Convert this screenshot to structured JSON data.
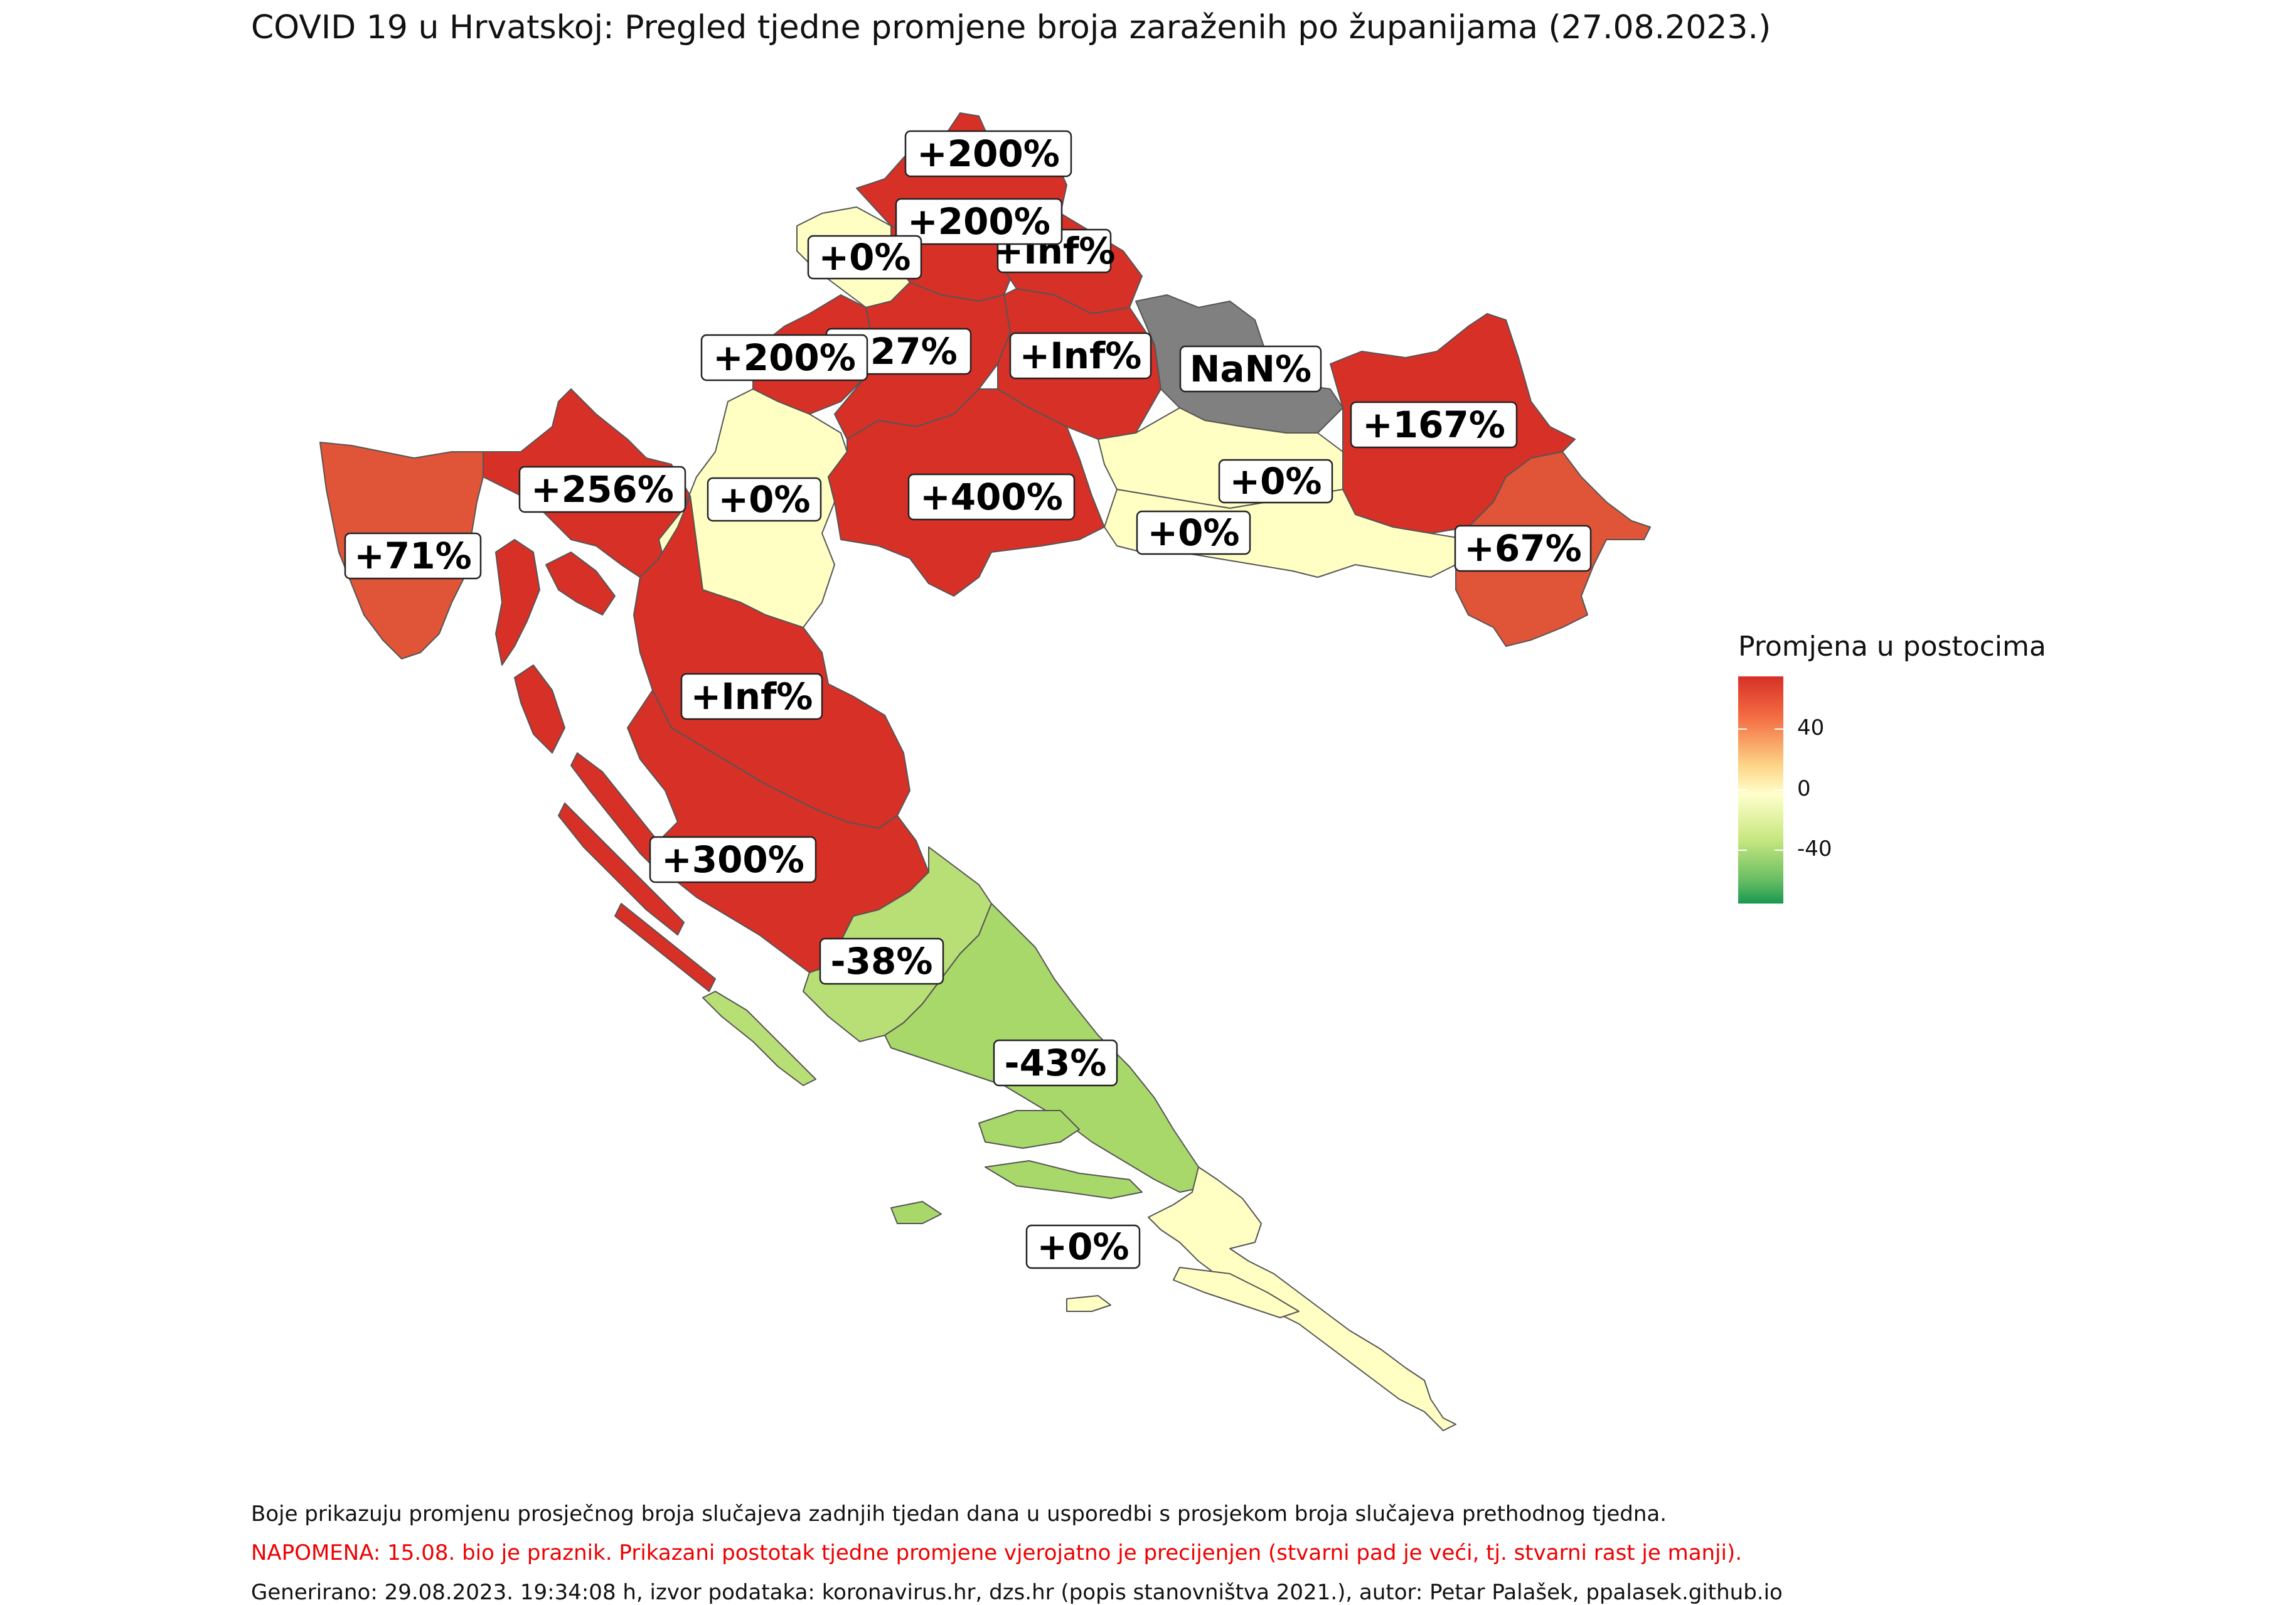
{
  "title": "COVID 19 u Hrvatskoj: Pregled tjedne promjene broja zaraženih po županijama (27.08.2023.)",
  "legend": {
    "title": "Promjena u postocima",
    "ticks": [
      "40",
      "0",
      "-40"
    ],
    "colors": {
      "high": "#d73027",
      "mid": "#ffffcc",
      "low": "#1a9850",
      "missing": "#808080"
    }
  },
  "counties": [
    {
      "label": "+200%",
      "color": "#d73027"
    },
    {
      "label": "+200%",
      "color": "#d73027"
    },
    {
      "label": "+Inf%",
      "color": "#d73027"
    },
    {
      "label": "+0%",
      "color": "#ffffc4"
    },
    {
      "label": "+200%",
      "color": "#d73027"
    },
    {
      "label": "+27%",
      "color": "#d73027"
    },
    {
      "label": "+Inf%",
      "color": "#d73027"
    },
    {
      "label": "NaN%",
      "color": "#808080"
    },
    {
      "label": "+167%",
      "color": "#d73027"
    },
    {
      "label": "+256%",
      "color": "#d73027"
    },
    {
      "label": "+0%",
      "color": "#ffffc4"
    },
    {
      "label": "+400%",
      "color": "#d73027"
    },
    {
      "label": "+0%",
      "color": "#ffffc4"
    },
    {
      "label": "+0%",
      "color": "#ffffc4"
    },
    {
      "label": "+67%",
      "color": "#e05438"
    },
    {
      "label": "+71%",
      "color": "#e05438"
    },
    {
      "label": "+Inf%",
      "color": "#d73027"
    },
    {
      "label": "+300%",
      "color": "#d73027"
    },
    {
      "label": "-38%",
      "color": "#b8df75"
    },
    {
      "label": "-43%",
      "color": "#a9d86a"
    },
    {
      "label": "+0%",
      "color": "#ffffc4"
    }
  ],
  "captions": {
    "line1": "Boje prikazuju promjenu prosječnog broja slučajeva zadnjih tjedan dana u usporedbi s prosjekom broja slučajeva prethodnog tjedna.",
    "line2": "NAPOMENA: 15.08. bio je praznik. Prikazani postotak tjedne promjene vjerojatno je precijenjen (stvarni pad je veći, tj. stvarni rast je manji).",
    "line3": "Generirano: 29.08.2023. 19:34:08 h, izvor podataka: koronavirus.hr, dzs.hr (popis stanovništva 2021.), autor: Petar Palašek, ppalasek.github.io"
  }
}
